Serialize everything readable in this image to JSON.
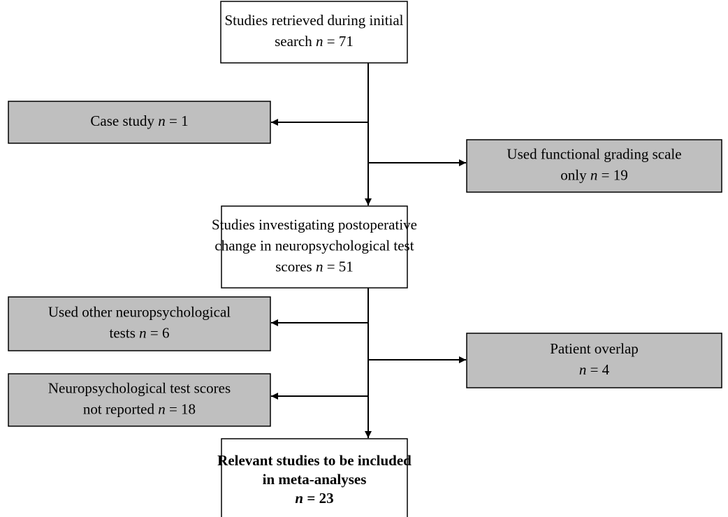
{
  "nodes": [
    {
      "fill": "#ffffff",
      "lines": [
        [
          {
            "text": "Studies retrieved during initial"
          }
        ],
        [
          {
            "text": "search "
          },
          {
            "text": "n",
            "style": "italic"
          },
          {
            "text": " = 71"
          }
        ]
      ]
    },
    {
      "fill": "#bfbfbf",
      "lines": [
        [
          {
            "text": "Case study "
          },
          {
            "text": "n",
            "style": "italic"
          },
          {
            "text": " = 1"
          }
        ]
      ]
    },
    {
      "fill": "#bfbfbf",
      "lines": [
        [
          {
            "text": "Used functional grading scale"
          }
        ],
        [
          {
            "text": "only "
          },
          {
            "text": "n",
            "style": "italic"
          },
          {
            "text": " = 19"
          }
        ]
      ]
    },
    {
      "fill": "#ffffff",
      "lines": [
        [
          {
            "text": "Studies investigating postoperative"
          }
        ],
        [
          {
            "text": "change in neuropsychological test"
          }
        ],
        [
          {
            "text": "scores "
          },
          {
            "text": "n",
            "style": "italic"
          },
          {
            "text": " = 51"
          }
        ]
      ]
    },
    {
      "fill": "#bfbfbf",
      "lines": [
        [
          {
            "text": "Used other neuropsychological"
          }
        ],
        [
          {
            "text": "tests "
          },
          {
            "text": "n",
            "style": "italic"
          },
          {
            "text": " = 6"
          }
        ]
      ]
    },
    {
      "fill": "#bfbfbf",
      "lines": [
        [
          {
            "text": "Patient overlap"
          }
        ],
        [
          {
            "text": "n",
            "style": "italic"
          },
          {
            "text": " = 4"
          }
        ]
      ]
    },
    {
      "fill": "#bfbfbf",
      "lines": [
        [
          {
            "text": "Neuropsychological test scores"
          }
        ],
        [
          {
            "text": "not reported "
          },
          {
            "text": "n",
            "style": "italic"
          },
          {
            "text": " = 18"
          }
        ]
      ]
    },
    {
      "fill": "#ffffff",
      "weight": "bold",
      "lines": [
        [
          {
            "text": "Relevant studies to be included"
          }
        ],
        [
          {
            "text": "in meta-analyses"
          }
        ],
        [
          {
            "text": "n",
            "style": "italic"
          },
          {
            "text": " = 23"
          }
        ]
      ]
    }
  ]
}
